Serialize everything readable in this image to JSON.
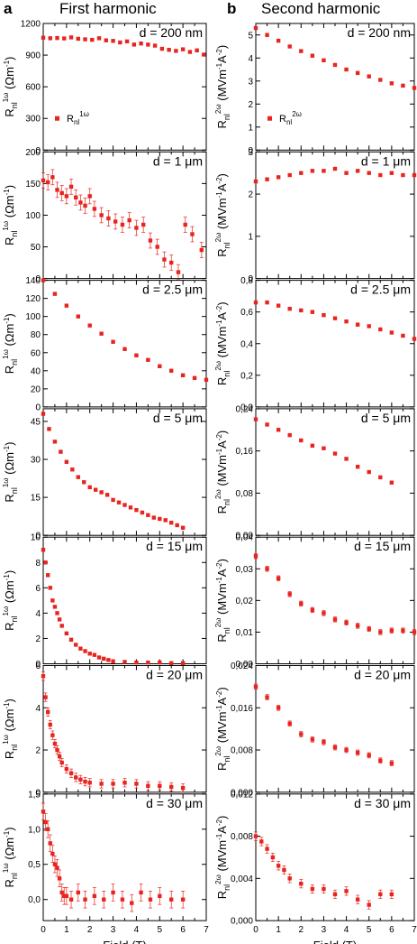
{
  "figure": {
    "panel_a": {
      "letter": "a",
      "title": "First harmonic"
    },
    "panel_b": {
      "letter": "b",
      "title": "Second harmonic"
    },
    "xlabel": "Field (T)"
  },
  "chart_data": [
    {
      "type": "scatter",
      "col": "a",
      "row": 0,
      "annotation": "d = 200 nm",
      "legend": "R_nl^1ω",
      "legend_position": "bottom-left",
      "ylabel": "R_nl^1ω (Ωm^-1)",
      "xlim": [
        0,
        7
      ],
      "ylim": [
        0,
        1200
      ],
      "yticks": [
        0,
        300,
        600,
        900,
        1200
      ],
      "yticklabels": [
        "0",
        "300",
        "600",
        "900",
        "1200"
      ],
      "xticklabels": [
        "",
        "",
        "",
        "",
        "",
        "",
        "",
        ""
      ],
      "err": 0,
      "x": [
        0,
        0.3,
        0.6,
        0.9,
        1.2,
        1.5,
        1.8,
        2.1,
        2.4,
        2.7,
        3.0,
        3.3,
        3.6,
        3.9,
        4.2,
        4.5,
        4.8,
        5.1,
        5.4,
        5.7,
        6.0,
        6.3,
        6.6,
        6.9
      ],
      "y": [
        1065,
        1060,
        1062,
        1058,
        1068,
        1055,
        1050,
        1045,
        1060,
        1040,
        1035,
        1020,
        1030,
        1000,
        1010,
        1000,
        990,
        960,
        950,
        940,
        955,
        930,
        945,
        905
      ]
    },
    {
      "type": "scatter",
      "col": "a",
      "row": 1,
      "annotation": "d = 1 μm",
      "ylabel": "R_nl^1ω (Ωm^-1)",
      "xlim": [
        0,
        7
      ],
      "ylim": [
        0,
        200
      ],
      "yticks": [
        0,
        50,
        100,
        150,
        200
      ],
      "yticklabels": [
        "0",
        "50",
        "100",
        "150",
        "200"
      ],
      "xticklabels": [
        "",
        "",
        "",
        "",
        "",
        "",
        "",
        ""
      ],
      "err": 12,
      "x": [
        0,
        0.2,
        0.4,
        0.6,
        0.8,
        1.0,
        1.2,
        1.4,
        1.6,
        1.8,
        2.0,
        2.2,
        2.5,
        2.8,
        3.1,
        3.4,
        3.7,
        4.0,
        4.3,
        4.6,
        4.9,
        5.2,
        5.5,
        5.8,
        6.1,
        6.4,
        6.8
      ],
      "y": [
        155,
        152,
        160,
        140,
        135,
        130,
        145,
        128,
        120,
        115,
        130,
        110,
        100,
        95,
        90,
        85,
        92,
        80,
        85,
        60,
        50,
        30,
        25,
        10,
        85,
        70,
        45
      ]
    },
    {
      "type": "scatter",
      "col": "a",
      "row": 2,
      "annotation": "d = 2.5 μm",
      "ylabel": "R_nl^1ω (Ωm^-1)",
      "xlim": [
        0,
        7
      ],
      "ylim": [
        0,
        140
      ],
      "yticks": [
        0,
        20,
        40,
        60,
        80,
        100,
        120,
        140
      ],
      "yticklabels": [
        "0",
        "20",
        "40",
        "60",
        "80",
        "100",
        "120",
        "140"
      ],
      "xticklabels": [
        "",
        "",
        "",
        "",
        "",
        "",
        "",
        ""
      ],
      "err": 0,
      "x": [
        0,
        0.5,
        1.0,
        1.5,
        2.0,
        2.5,
        3.0,
        3.5,
        4.0,
        4.5,
        5.0,
        5.5,
        6.0,
        6.5,
        7.0
      ],
      "y": [
        140,
        125,
        112,
        100,
        90,
        81,
        72,
        64,
        57,
        52,
        45,
        40,
        35,
        32,
        30
      ]
    },
    {
      "type": "scatter",
      "col": "a",
      "row": 3,
      "annotation": "d = 5 μm",
      "ylabel": "R_nl^1ω (Ωm^-1)",
      "xlim": [
        0,
        7
      ],
      "ylim": [
        0,
        50
      ],
      "yticks": [
        0,
        15,
        30,
        45
      ],
      "yticklabels": [
        "0",
        "15",
        "30",
        "45"
      ],
      "xticklabels": [
        "",
        "",
        "",
        "",
        "",
        "",
        "",
        ""
      ],
      "err": 0,
      "x": [
        0,
        0.25,
        0.5,
        0.75,
        1.0,
        1.25,
        1.5,
        1.75,
        2.0,
        2.25,
        2.5,
        2.75,
        3.0,
        3.25,
        3.5,
        3.75,
        4.0,
        4.25,
        4.5,
        4.75,
        5.0,
        5.25,
        5.5,
        5.75,
        6.0
      ],
      "y": [
        48,
        42,
        37,
        33,
        29,
        26,
        23,
        21,
        19,
        18,
        17,
        16,
        14,
        13,
        12,
        11,
        10,
        9,
        8,
        7,
        6.5,
        6,
        5,
        4,
        3
      ]
    },
    {
      "type": "scatter",
      "col": "a",
      "row": 4,
      "annotation": "d = 15 μm",
      "ylabel": "R_nl^1ω (Ωm^-1)",
      "xlim": [
        0,
        7
      ],
      "ylim": [
        0,
        10
      ],
      "yticks": [
        0,
        2,
        4,
        6,
        8,
        10
      ],
      "yticklabels": [
        "0",
        "2",
        "4",
        "6",
        "8",
        "10"
      ],
      "xticklabels": [
        "",
        "",
        "",
        "",
        "",
        "",
        "",
        ""
      ],
      "err": 0,
      "x": [
        0,
        0.1,
        0.2,
        0.3,
        0.4,
        0.5,
        0.6,
        0.7,
        0.8,
        1.0,
        1.2,
        1.4,
        1.6,
        1.8,
        2.0,
        2.2,
        2.4,
        2.6,
        2.8,
        3.0,
        3.5,
        4.0,
        4.5,
        5.0,
        5.5,
        6.0
      ],
      "y": [
        9,
        8,
        7,
        6,
        5,
        4.5,
        4,
        3.5,
        3,
        2.4,
        1.9,
        1.5,
        1.2,
        1.0,
        0.8,
        0.7,
        0.5,
        0.4,
        0.3,
        0.2,
        0.15,
        0.1,
        0.1,
        0.1,
        0.05,
        0.05
      ]
    },
    {
      "type": "scatter",
      "col": "a",
      "row": 5,
      "annotation": "d = 20 μm",
      "ylabel": "R_nl^1ω (Ωm^-1)",
      "xlim": [
        0,
        7
      ],
      "ylim": [
        0,
        6
      ],
      "yticks": [
        0,
        2,
        4,
        6
      ],
      "yticklabels": [
        "0",
        "2",
        "4",
        "6"
      ],
      "xticklabels": [
        "",
        "",
        "",
        "",
        "",
        "",
        "",
        ""
      ],
      "err": 0.2,
      "x": [
        0,
        0.1,
        0.2,
        0.3,
        0.4,
        0.5,
        0.6,
        0.7,
        0.8,
        1.0,
        1.2,
        1.4,
        1.6,
        1.8,
        2.0,
        2.5,
        3.0,
        3.5,
        4.0,
        4.5,
        5.0,
        5.5,
        6.0
      ],
      "y": [
        5.5,
        4.5,
        3.8,
        3.2,
        2.7,
        2.3,
        2.0,
        1.7,
        1.4,
        1.1,
        0.9,
        0.7,
        0.6,
        0.5,
        0.45,
        0.4,
        0.4,
        0.45,
        0.4,
        0.3,
        0.3,
        0.25,
        0.2
      ]
    },
    {
      "type": "scatter",
      "col": "a",
      "row": 6,
      "annotation": "d = 30 μm",
      "ylabel": "R_nl^1ω (Ωm^-1)",
      "xlabel": "Field (T)",
      "xlim": [
        0,
        7
      ],
      "ylim": [
        -0.3,
        1.5
      ],
      "yticks": [
        0,
        0.5,
        1.0,
        1.5
      ],
      "yticklabels": [
        "0,0",
        "0,5",
        "1,0",
        "1,5"
      ],
      "xticklabels": [
        "0",
        "1",
        "2",
        "3",
        "4",
        "5",
        "6",
        "7"
      ],
      "err": 0.12,
      "x": [
        0,
        0.1,
        0.2,
        0.3,
        0.4,
        0.5,
        0.6,
        0.7,
        0.8,
        0.9,
        1.0,
        1.2,
        1.5,
        1.8,
        2.2,
        2.6,
        3.0,
        3.4,
        3.8,
        4.2,
        4.6,
        5.0,
        5.5,
        6.0
      ],
      "y": [
        1.25,
        1.1,
        1.0,
        0.8,
        0.65,
        0.5,
        0.45,
        0.3,
        0.1,
        0.05,
        0.05,
        0.0,
        0.1,
        0.0,
        0.05,
        0.0,
        0.1,
        0.0,
        -0.05,
        0.1,
        0.0,
        0.05,
        0.0,
        0.0
      ]
    },
    {
      "type": "scatter",
      "col": "b",
      "row": 0,
      "annotation": "d = 200 nm",
      "legend": "R_nl^2ω",
      "legend_position": "bottom-left",
      "ylabel": "R_nl^2ω (MVm^-1A^-2)",
      "xlim": [
        0,
        7
      ],
      "ylim": [
        0,
        5.5
      ],
      "yticks": [
        0,
        1,
        2,
        3,
        4,
        5
      ],
      "yticklabels": [
        "0",
        "1",
        "2",
        "3",
        "4",
        "5"
      ],
      "xticklabels": [
        "",
        "",
        "",
        "",
        "",
        "",
        "",
        ""
      ],
      "err": 0,
      "x": [
        0,
        0.5,
        1.0,
        1.5,
        2.0,
        2.5,
        3.0,
        3.5,
        4.0,
        4.5,
        5.0,
        5.5,
        6.0,
        6.5,
        7.0
      ],
      "y": [
        5.3,
        5.0,
        4.75,
        4.5,
        4.3,
        4.1,
        3.9,
        3.7,
        3.5,
        3.35,
        3.2,
        3.05,
        2.9,
        2.8,
        2.7
      ]
    },
    {
      "type": "scatter",
      "col": "b",
      "row": 1,
      "annotation": "d = 1 μm",
      "ylabel": "R_nl^2ω (MVm^-1A^-2)",
      "xlim": [
        0,
        7
      ],
      "ylim": [
        0,
        3
      ],
      "yticks": [
        0,
        1,
        2,
        3
      ],
      "yticklabels": [
        "0",
        "1",
        "2",
        "3"
      ],
      "xticklabels": [
        "",
        "",
        "",
        "",
        "",
        "",
        "",
        ""
      ],
      "err": 0,
      "x": [
        0,
        0.5,
        1.0,
        1.5,
        2.0,
        2.5,
        3.0,
        3.5,
        4.0,
        4.5,
        5.0,
        5.5,
        6.0,
        6.5,
        7.0
      ],
      "y": [
        2.3,
        2.35,
        2.4,
        2.45,
        2.5,
        2.55,
        2.55,
        2.6,
        2.5,
        2.55,
        2.5,
        2.45,
        2.5,
        2.45,
        2.45
      ]
    },
    {
      "type": "scatter",
      "col": "b",
      "row": 2,
      "annotation": "d = 2.5 μm",
      "ylabel": "R_nl^2ω (MVm^-1A^-2)",
      "xlim": [
        0,
        7
      ],
      "ylim": [
        0,
        0.8
      ],
      "yticks": [
        0,
        0.2,
        0.4,
        0.6,
        0.8
      ],
      "yticklabels": [
        "0,0",
        "0,2",
        "0,4",
        "0,6",
        "0,8"
      ],
      "xticklabels": [
        "",
        "",
        "",
        "",
        "",
        "",
        "",
        ""
      ],
      "err": 0,
      "x": [
        0,
        0.5,
        1.0,
        1.5,
        2.0,
        2.5,
        3.0,
        3.5,
        4.0,
        4.5,
        5.0,
        5.5,
        6.0,
        6.5,
        7.0
      ],
      "y": [
        0.66,
        0.66,
        0.64,
        0.62,
        0.61,
        0.6,
        0.58,
        0.56,
        0.54,
        0.52,
        0.51,
        0.49,
        0.47,
        0.45,
        0.43
      ]
    },
    {
      "type": "scatter",
      "col": "b",
      "row": 3,
      "annotation": "d = 5 μm",
      "ylabel": "R_nl^2ω (MVm^-1A^-2)",
      "xlim": [
        0,
        7
      ],
      "ylim": [
        0,
        0.24
      ],
      "yticks": [
        0,
        0.08,
        0.16,
        0.24
      ],
      "yticklabels": [
        "0,00",
        "0,08",
        "0,16",
        "0,24"
      ],
      "xticklabels": [
        "",
        "",
        "",
        "",
        "",
        "",
        "",
        ""
      ],
      "err": 0,
      "x": [
        0,
        0.5,
        1.0,
        1.5,
        2.0,
        2.5,
        3.0,
        3.5,
        4.0,
        4.5,
        5.0,
        5.5,
        6.0
      ],
      "y": [
        0.22,
        0.21,
        0.2,
        0.19,
        0.18,
        0.17,
        0.165,
        0.155,
        0.145,
        0.13,
        0.12,
        0.11,
        0.1
      ]
    },
    {
      "type": "scatter",
      "col": "b",
      "row": 4,
      "annotation": "d = 15 μm",
      "ylabel": "R_nl^2ω (MVm^-1A^-2)",
      "xlim": [
        0,
        7
      ],
      "ylim": [
        0,
        0.04
      ],
      "yticks": [
        0,
        0.01,
        0.02,
        0.03,
        0.04
      ],
      "yticklabels": [
        "0,00",
        "0,01",
        "0,02",
        "0,03",
        "0,04"
      ],
      "xticklabels": [
        "",
        "",
        "",
        "",
        "",
        "",
        "",
        ""
      ],
      "err": 0.0008,
      "x": [
        0,
        0.5,
        1.0,
        1.5,
        2.0,
        2.5,
        3.0,
        3.5,
        4.0,
        4.5,
        5.0,
        5.5,
        6.0,
        6.5,
        7.0
      ],
      "y": [
        0.034,
        0.03,
        0.027,
        0.022,
        0.019,
        0.017,
        0.016,
        0.014,
        0.013,
        0.012,
        0.011,
        0.01,
        0.0105,
        0.0105,
        0.01
      ]
    },
    {
      "type": "scatter",
      "col": "b",
      "row": 5,
      "annotation": "d = 20 μm",
      "ylabel": "R_nl^2ω (MVm^-1A^-2)",
      "xlim": [
        0,
        7
      ],
      "ylim": [
        0,
        0.024
      ],
      "yticks": [
        0,
        0.008,
        0.016,
        0.024
      ],
      "yticklabels": [
        "0,000",
        "0,008",
        "0,016",
        "0,024"
      ],
      "xticklabels": [
        "",
        "",
        "",
        "",
        "",
        "",
        "",
        ""
      ],
      "err": 0.0005,
      "x": [
        0,
        0.5,
        1.0,
        1.5,
        2.0,
        2.5,
        3.0,
        3.5,
        4.0,
        4.5,
        5.0,
        5.5,
        6.0
      ],
      "y": [
        0.02,
        0.018,
        0.016,
        0.013,
        0.011,
        0.01,
        0.0095,
        0.0085,
        0.008,
        0.0075,
        0.007,
        0.006,
        0.0055
      ]
    },
    {
      "type": "scatter",
      "col": "b",
      "row": 6,
      "annotation": "d = 30 μm",
      "ylabel": "R_nl^2ω (MVm^-1A^-2)",
      "xlabel": "Field (T)",
      "xlim": [
        0,
        7
      ],
      "ylim": [
        0,
        0.012
      ],
      "yticks": [
        0,
        0.004,
        0.008,
        0.012
      ],
      "yticklabels": [
        "0,000",
        "0,004",
        "0,008",
        "0,012"
      ],
      "xticklabels": [
        "0",
        "1",
        "2",
        "3",
        "4",
        "5",
        "6",
        "7"
      ],
      "err": 0.0004,
      "x": [
        0,
        0.25,
        0.5,
        0.75,
        1.0,
        1.25,
        1.5,
        2.0,
        2.5,
        3.0,
        3.5,
        4.0,
        4.5,
        5.0,
        5.5,
        6.0
      ],
      "y": [
        0.008,
        0.0075,
        0.0068,
        0.006,
        0.0052,
        0.0048,
        0.004,
        0.0035,
        0.003,
        0.003,
        0.0025,
        0.0028,
        0.002,
        0.0015,
        0.0025,
        0.0025
      ]
    }
  ],
  "colors": {
    "marker": "#e8241f",
    "axis": "#000000",
    "background": "#ffffff"
  }
}
